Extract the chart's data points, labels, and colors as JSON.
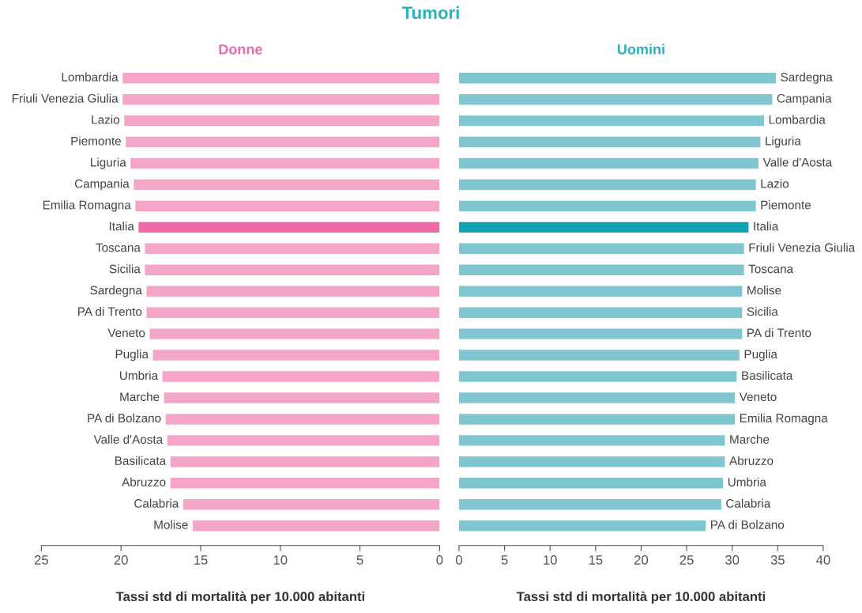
{
  "chart_data": [
    {
      "type": "bar",
      "orientation": "horizontal",
      "title": "Tumori",
      "subtitle": "Donne",
      "xlabel": "Tassi std di mortalità per 10.000 abitanti",
      "categories": [
        "Lombardia",
        "Friuli Venezia Giulia",
        "Lazio",
        "Piemonte",
        "Liguria",
        "Campania",
        "Emilia Romagna",
        "Italia",
        "Toscana",
        "Sicilia",
        "Sardegna",
        "PA di Trento",
        "Veneto",
        "Puglia",
        "Umbria",
        "Marche",
        "PA di Bolzano",
        "Valle d'Aosta",
        "Basilicata",
        "Abruzzo",
        "Calabria",
        "Molise"
      ],
      "values": [
        19.9,
        19.9,
        19.8,
        19.7,
        19.4,
        19.2,
        19.1,
        18.9,
        18.5,
        18.5,
        18.4,
        18.4,
        18.2,
        18.0,
        17.4,
        17.3,
        17.2,
        17.1,
        16.9,
        16.9,
        16.1,
        15.5
      ],
      "colors": [
        "#f4a6c8",
        "#f4a6c8",
        "#f4a6c8",
        "#f4a6c8",
        "#f4a6c8",
        "#f4a6c8",
        "#f4a6c8",
        "#ee6aa7",
        "#f4a6c8",
        "#f4a6c8",
        "#f4a6c8",
        "#f4a6c8",
        "#f4a6c8",
        "#f4a6c8",
        "#f4a6c8",
        "#f4a6c8",
        "#f4a6c8",
        "#f4a6c8",
        "#f4a6c8",
        "#f4a6c8",
        "#f4a6c8",
        "#f4a6c8"
      ],
      "xlim": [
        25,
        0
      ],
      "xticks": [
        25,
        20,
        15,
        10,
        5,
        0
      ],
      "grid": false,
      "legend": false
    },
    {
      "type": "bar",
      "orientation": "horizontal",
      "subtitle": "Uomini",
      "xlabel": "Tassi std di mortalità per 10.000 abitanti",
      "categories": [
        "Sardegna",
        "Campania",
        "Lombardia",
        "Liguria",
        "Valle d'Aosta",
        "Lazio",
        "Piemonte",
        "Italia",
        "Friuli Venezia Giulia",
        "Toscana",
        "Molise",
        "Sicilia",
        "PA di Trento",
        "Puglia",
        "Basilicata",
        "Veneto",
        "Emilia Romagna",
        "Marche",
        "Abruzzo",
        "Umbria",
        "Calabria",
        "PA di Bolzano"
      ],
      "values": [
        34.8,
        34.4,
        33.5,
        33.1,
        32.9,
        32.6,
        32.6,
        31.8,
        31.3,
        31.3,
        31.1,
        31.1,
        31.1,
        30.8,
        30.5,
        30.3,
        30.3,
        29.2,
        29.2,
        29.0,
        28.8,
        27.1
      ],
      "colors": [
        "#7fc6d1",
        "#7fc6d1",
        "#7fc6d1",
        "#7fc6d1",
        "#7fc6d1",
        "#7fc6d1",
        "#7fc6d1",
        "#10a2b4",
        "#7fc6d1",
        "#7fc6d1",
        "#7fc6d1",
        "#7fc6d1",
        "#7fc6d1",
        "#7fc6d1",
        "#7fc6d1",
        "#7fc6d1",
        "#7fc6d1",
        "#7fc6d1",
        "#7fc6d1",
        "#7fc6d1",
        "#7fc6d1",
        "#7fc6d1"
      ],
      "xlim": [
        0,
        40
      ],
      "xticks": [
        0,
        5,
        10,
        15,
        20,
        25,
        30,
        35,
        40
      ],
      "grid": false,
      "legend": false
    }
  ]
}
